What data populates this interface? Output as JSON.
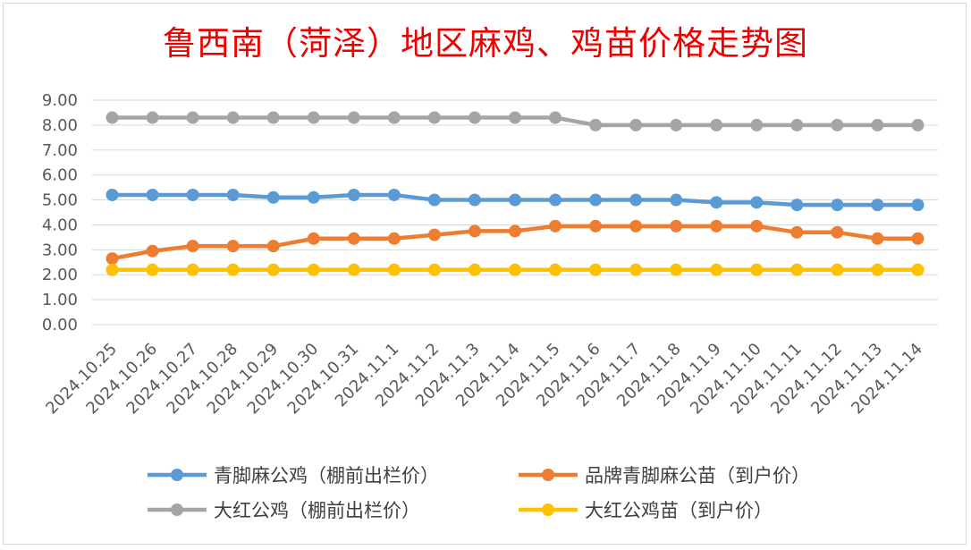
{
  "chart_data": {
    "type": "line",
    "title": "鲁西南（菏泽）地区麻鸡、鸡苗价格走势图",
    "xlabel": "",
    "ylabel": "",
    "ylim": [
      0,
      9
    ],
    "y_ticks": [
      "0.00",
      "1.00",
      "2.00",
      "3.00",
      "4.00",
      "5.00",
      "6.00",
      "7.00",
      "8.00",
      "9.00"
    ],
    "grid": true,
    "legend_position": "bottom",
    "categories": [
      "2024.10.25",
      "2024.10.26",
      "2024.10.27",
      "2024.10.28",
      "2024.10.29",
      "2024.10.30",
      "2024.10.31",
      "2024.11.1",
      "2024.11.2",
      "2024.11.3",
      "2024.11.4",
      "2024.11.5",
      "2024.11.6",
      "2024.11.7",
      "2024.11.8",
      "2024.11.9",
      "2024.11.10",
      "2024.11.11",
      "2024.11.12",
      "2024.11.13",
      "2024.11.14"
    ],
    "series": [
      {
        "name": "青脚麻公鸡（棚前出栏价）",
        "color": "#5b9bd5",
        "values": [
          5.2,
          5.2,
          5.2,
          5.2,
          5.1,
          5.1,
          5.2,
          5.2,
          5.0,
          5.0,
          5.0,
          5.0,
          5.0,
          5.0,
          5.0,
          4.9,
          4.9,
          4.8,
          4.8,
          4.8,
          4.8
        ]
      },
      {
        "name": "品牌青脚麻公苗（到户价）",
        "color": "#ed7d31",
        "values": [
          2.65,
          2.95,
          3.15,
          3.15,
          3.15,
          3.45,
          3.45,
          3.45,
          3.6,
          3.75,
          3.75,
          3.95,
          3.95,
          3.95,
          3.95,
          3.95,
          3.95,
          3.7,
          3.7,
          3.45,
          3.45
        ]
      },
      {
        "name": "大红公鸡（棚前出栏价）",
        "color": "#a5a5a5",
        "values": [
          8.3,
          8.3,
          8.3,
          8.3,
          8.3,
          8.3,
          8.3,
          8.3,
          8.3,
          8.3,
          8.3,
          8.3,
          8.0,
          8.0,
          8.0,
          8.0,
          8.0,
          8.0,
          8.0,
          8.0,
          8.0
        ]
      },
      {
        "name": "大红公鸡苗（到户价）",
        "color": "#ffc000",
        "values": [
          2.2,
          2.2,
          2.2,
          2.2,
          2.2,
          2.2,
          2.2,
          2.2,
          2.2,
          2.2,
          2.2,
          2.2,
          2.2,
          2.2,
          2.2,
          2.2,
          2.2,
          2.2,
          2.2,
          2.2,
          2.2
        ]
      }
    ]
  },
  "colors": {
    "title": "#ee0000",
    "grid": "#d9d9d9",
    "axis_text": "#595959"
  }
}
